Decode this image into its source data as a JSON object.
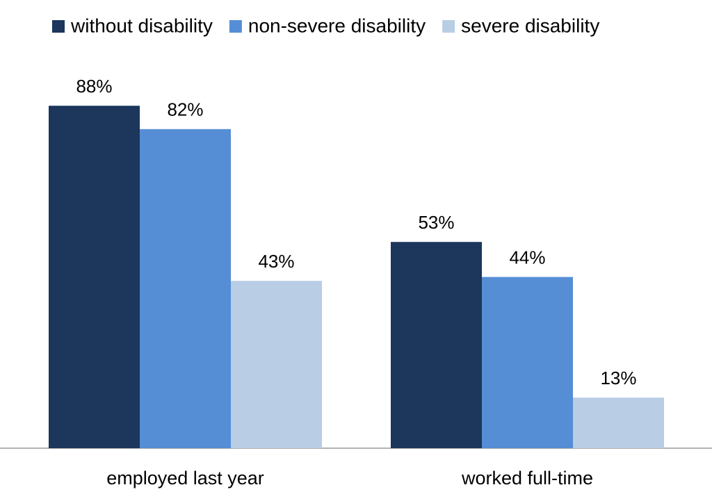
{
  "chart_data": {
    "type": "bar",
    "categories": [
      "employed last year",
      "worked full-time"
    ],
    "series": [
      {
        "name": "without disability",
        "color": "#1c365c",
        "values": [
          88,
          53
        ],
        "value_labels": [
          "88%",
          "53%"
        ]
      },
      {
        "name": "non-severe disability",
        "color": "#558ed5",
        "values": [
          82,
          44
        ],
        "value_labels": [
          "82%",
          "44%"
        ]
      },
      {
        "name": "severe disability",
        "color": "#b9cde5",
        "values": [
          43,
          13
        ],
        "value_labels": [
          "43%",
          "13%"
        ]
      }
    ],
    "ylim": [
      0,
      100
    ],
    "legend": "top"
  }
}
